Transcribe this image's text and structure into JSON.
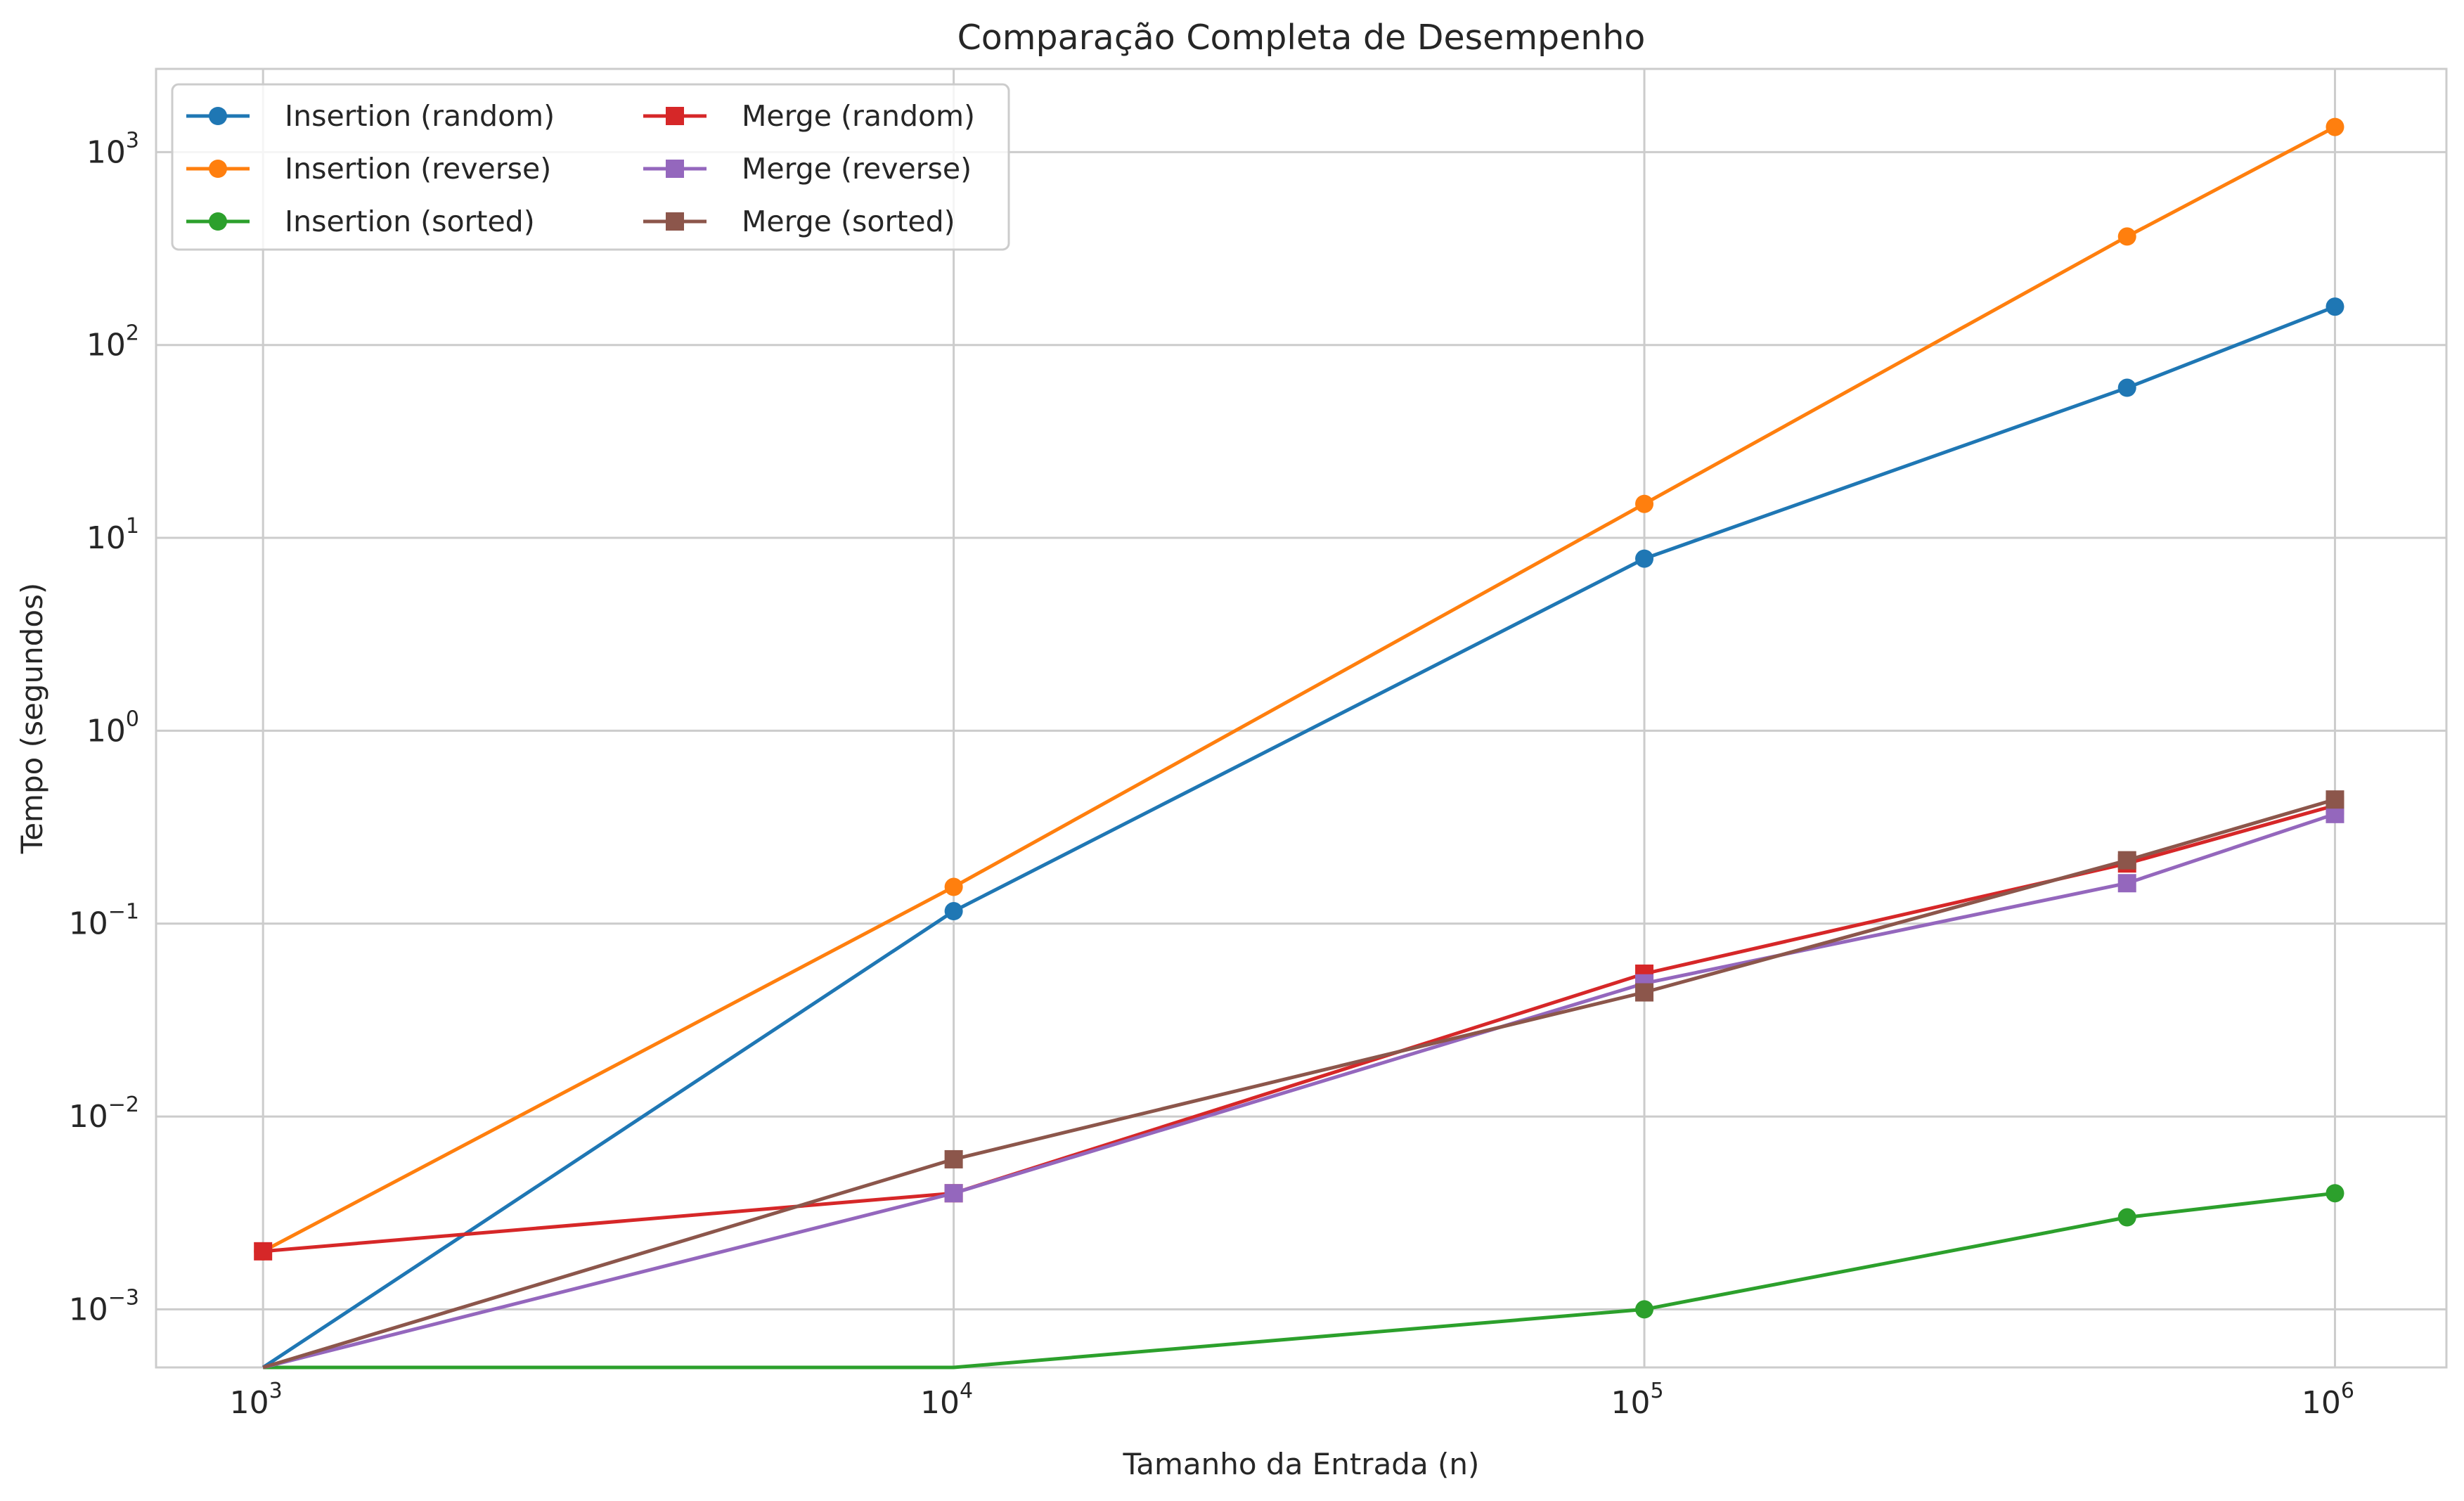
{
  "chart_data": {
    "type": "line",
    "title": "Comparação Completa de Desempenho",
    "xlabel": "Tamanho da Entrada (n)",
    "ylabel": "Tempo (segundos)",
    "xscale": "log",
    "yscale": "log",
    "xlim": [
      700,
      1450000
    ],
    "ylim": [
      0.0005,
      2700
    ],
    "x_ticks": [
      1000,
      10000,
      100000,
      1000000
    ],
    "x_tick_labels": [
      {
        "base": "10",
        "exp": "3"
      },
      {
        "base": "10",
        "exp": "4"
      },
      {
        "base": "10",
        "exp": "5"
      },
      {
        "base": "10",
        "exp": "6"
      }
    ],
    "y_ticks": [
      0.001,
      0.01,
      0.1,
      1,
      10,
      100,
      1000
    ],
    "y_tick_labels": [
      {
        "base": "10",
        "exp": "−3"
      },
      {
        "base": "10",
        "exp": "−2"
      },
      {
        "base": "10",
        "exp": "−1"
      },
      {
        "base": "10",
        "exp": "0"
      },
      {
        "base": "10",
        "exp": "1"
      },
      {
        "base": "10",
        "exp": "2"
      },
      {
        "base": "10",
        "exp": "3"
      }
    ],
    "grid": true,
    "legend": {
      "position": "upper-left",
      "columns": 2
    },
    "x": [
      1000,
      10000,
      100000,
      500000,
      1000000
    ],
    "series": [
      {
        "name": "Insertion (random)",
        "color": "#1f77b4",
        "marker": "circle",
        "values": [
          0,
          0.116,
          7.8,
          60,
          158
        ]
      },
      {
        "name": "Insertion (reverse)",
        "color": "#ff7f0e",
        "marker": "circle",
        "values": [
          0.002,
          0.155,
          15,
          365,
          1350
        ]
      },
      {
        "name": "Insertion (sorted)",
        "color": "#2ca02c",
        "marker": "circle",
        "values": [
          0,
          0,
          0.001,
          0.003,
          0.004
        ]
      },
      {
        "name": "Merge (random)",
        "color": "#d62728",
        "marker": "square",
        "values": [
          0.002,
          0.004,
          0.055,
          0.205,
          0.41
        ]
      },
      {
        "name": "Merge (reverse)",
        "color": "#9467bd",
        "marker": "square",
        "values": [
          0,
          0.004,
          0.049,
          0.162,
          0.37
        ]
      },
      {
        "name": "Merge (sorted)",
        "color": "#8c564b",
        "marker": "square",
        "values": [
          0,
          0.006,
          0.044,
          0.213,
          0.44
        ]
      }
    ]
  }
}
